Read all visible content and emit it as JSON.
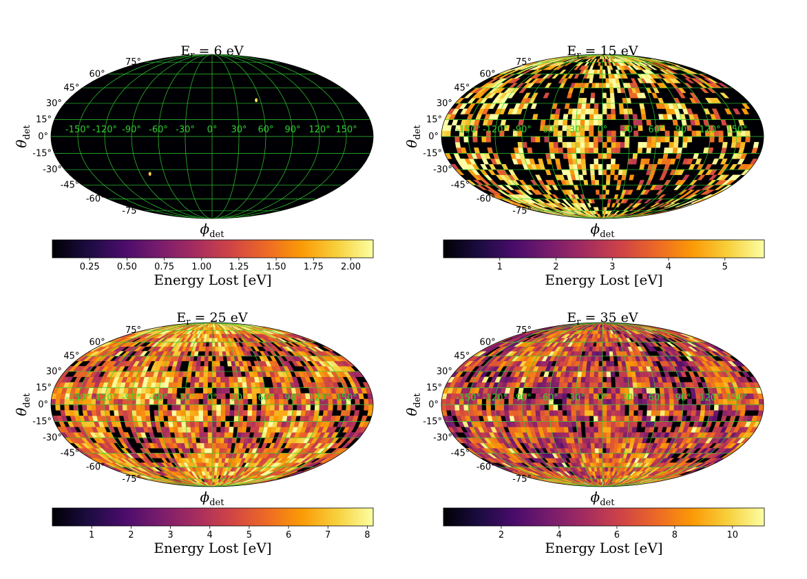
{
  "figure": {
    "colormap": "inferno",
    "colormap_stops": [
      "#000004",
      "#1b0c41",
      "#4a0c6b",
      "#781c6d",
      "#a52c60",
      "#cf4446",
      "#ed6925",
      "#fb9b06",
      "#f7d13d",
      "#fcffa4"
    ],
    "grid_color": "#2fd12f",
    "theta_label": "θ",
    "theta_sub": "det",
    "phi_label": "ϕ",
    "phi_sub": "det",
    "lat_ticks": [
      "75°",
      "60°",
      "45°",
      "30°",
      "15°",
      "0°",
      "-15°",
      "-30°",
      "-45°",
      "-60°",
      "-75°"
    ],
    "lon_ticks": [
      "-150°",
      "-120°",
      "-90°",
      "-60°",
      "-30°",
      "0°",
      "30°",
      "60°",
      "90°",
      "120°",
      "150°"
    ]
  },
  "chart_data": [
    {
      "type": "heatmap",
      "projection": "mollweide",
      "title_prefix": "E",
      "title_sub": "r",
      "title_value": " = 6 eV",
      "colorbar_label": "Energy Lost [eV]",
      "colorbar_range": [
        0.0,
        2.15
      ],
      "colorbar_ticks": [
        "0.25",
        "0.50",
        "0.75",
        "1.00",
        "1.25",
        "1.50",
        "1.75",
        "2.00"
      ],
      "colorbar_tick_values": [
        0.25,
        0.5,
        0.75,
        1.0,
        1.25,
        1.5,
        1.75,
        2.0
      ],
      "fill_fraction": 0.0,
      "mean_level": 0.9,
      "features": [
        {
          "lon": 55,
          "lat": 33,
          "value": 2.0
        },
        {
          "lon": -78,
          "lat": -34,
          "value": 1.9
        }
      ],
      "seed": 11
    },
    {
      "type": "heatmap",
      "projection": "mollweide",
      "title_prefix": "E",
      "title_sub": "r",
      "title_value": " = 15 eV",
      "colorbar_label": "Energy Lost [eV]",
      "colorbar_range": [
        0.0,
        5.7
      ],
      "colorbar_ticks": [
        "1",
        "2",
        "3",
        "4",
        "5"
      ],
      "colorbar_tick_values": [
        1,
        2,
        3,
        4,
        5
      ],
      "fill_fraction": 0.22,
      "mean_level": 0.72,
      "features": [],
      "seed": 23
    },
    {
      "type": "heatmap",
      "projection": "mollweide",
      "title_prefix": "E",
      "title_sub": "r",
      "title_value": " = 25 eV",
      "colorbar_label": "Energy Lost [eV]",
      "colorbar_range": [
        0.0,
        8.15
      ],
      "colorbar_ticks": [
        "1",
        "2",
        "3",
        "4",
        "5",
        "6",
        "7",
        "8"
      ],
      "colorbar_tick_values": [
        1,
        2,
        3,
        4,
        5,
        6,
        7,
        8
      ],
      "fill_fraction": 0.55,
      "mean_level": 0.58,
      "features": [],
      "seed": 37
    },
    {
      "type": "heatmap",
      "projection": "mollweide",
      "title_prefix": "E",
      "title_sub": "r",
      "title_value": " = 35 eV",
      "colorbar_label": "Energy Lost [eV]",
      "colorbar_range": [
        0.0,
        11.1
      ],
      "colorbar_ticks": [
        "2",
        "4",
        "6",
        "8",
        "10"
      ],
      "colorbar_tick_values": [
        2,
        4,
        6,
        8,
        10
      ],
      "fill_fraction": 0.58,
      "mean_level": 0.45,
      "features": [],
      "seed": 53
    }
  ]
}
